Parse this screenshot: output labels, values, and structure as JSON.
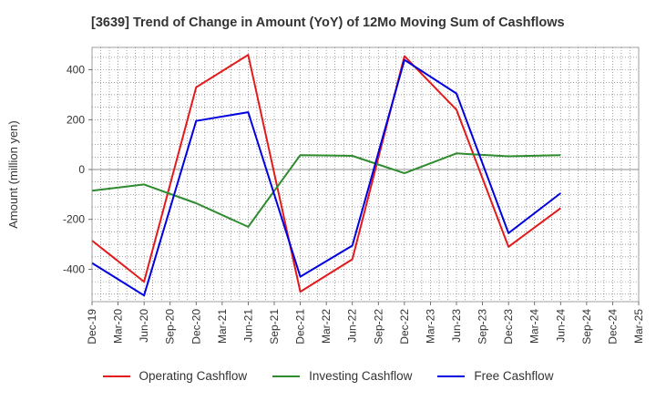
{
  "chart_data": {
    "type": "line",
    "title": "[3639]  Trend of Change in Amount (YoY) of 12Mo Moving Sum of Cashflows",
    "xlabel": "",
    "ylabel": "Amount (million yen)",
    "ylim": [
      -530,
      490
    ],
    "yticks": [
      -400,
      -200,
      0,
      200,
      400
    ],
    "categories": [
      "Dec-19",
      "Mar-20",
      "Jun-20",
      "Sep-20",
      "Dec-20",
      "Mar-21",
      "Jun-21",
      "Sep-21",
      "Dec-21",
      "Mar-22",
      "Jun-22",
      "Sep-22",
      "Dec-22",
      "Mar-23",
      "Jun-23",
      "Sep-23",
      "Dec-23",
      "Mar-24",
      "Jun-24",
      "Sep-24",
      "Dec-24",
      "Mar-25"
    ],
    "series": [
      {
        "name": "Operating Cashflow",
        "color": "#e31a1c",
        "values": [
          -285,
          null,
          -450,
          null,
          330,
          null,
          460,
          null,
          -490,
          null,
          -360,
          null,
          455,
          null,
          240,
          null,
          -310,
          null,
          -155,
          null,
          null,
          null
        ]
      },
      {
        "name": "Investing Cashflow",
        "color": "#2e8b2e",
        "values": [
          -85,
          null,
          -60,
          null,
          -135,
          null,
          -230,
          null,
          58,
          null,
          55,
          null,
          -15,
          null,
          65,
          null,
          53,
          null,
          58,
          null,
          null,
          null
        ]
      },
      {
        "name": "Free Cashflow",
        "color": "#0000e0",
        "values": [
          -375,
          null,
          -505,
          null,
          195,
          null,
          230,
          null,
          -430,
          null,
          -305,
          null,
          440,
          null,
          305,
          null,
          -255,
          null,
          -95,
          null,
          null,
          null
        ]
      }
    ]
  }
}
